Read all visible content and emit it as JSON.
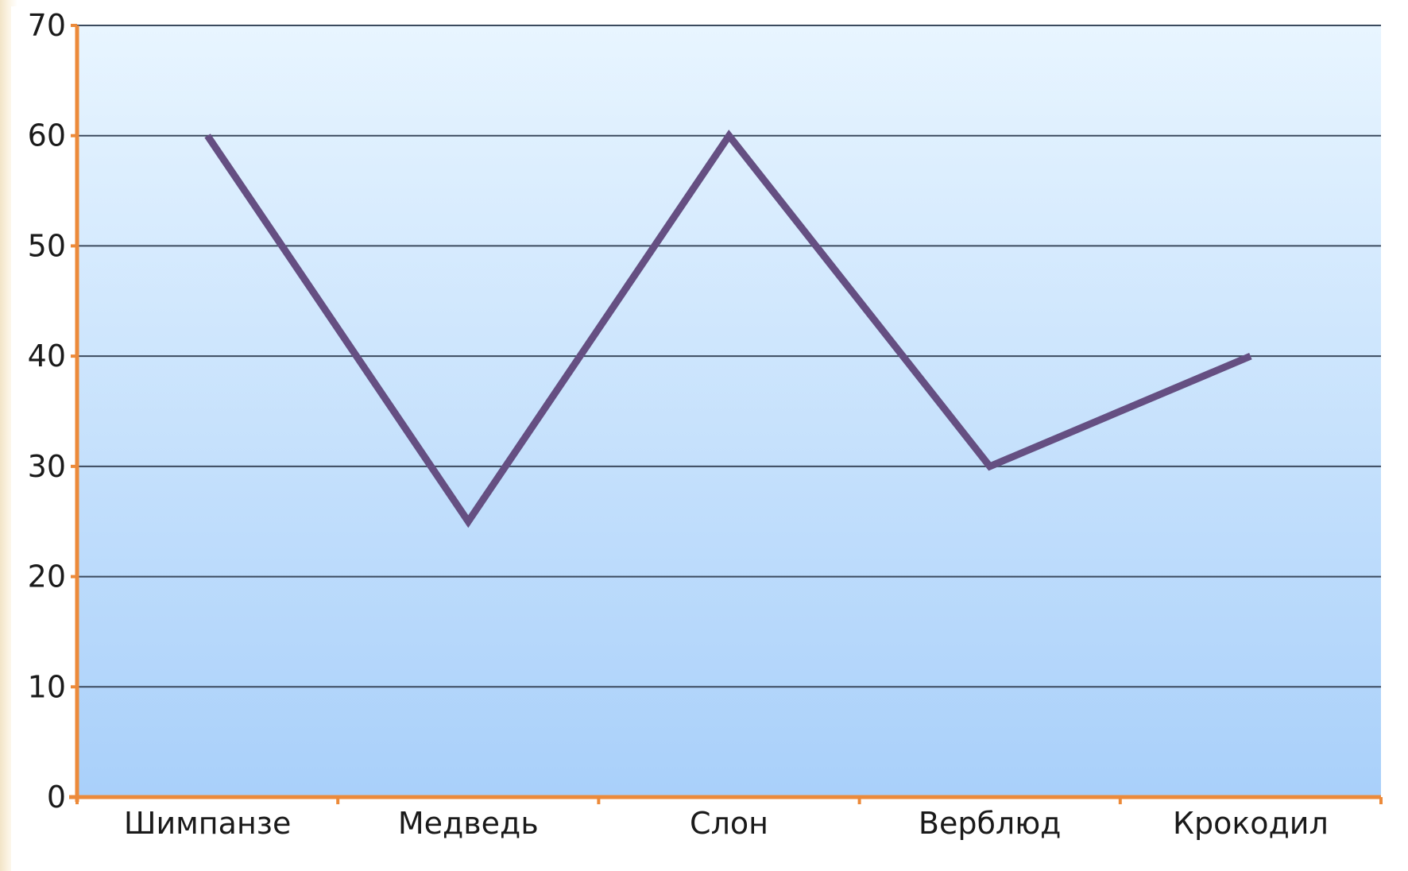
{
  "chart_data": {
    "type": "line",
    "title": "",
    "xlabel": "",
    "ylabel": "",
    "categories": [
      "Шимпанзе",
      "Медведь",
      "Слон",
      "Верблюд",
      "Крокодил"
    ],
    "series": [
      {
        "values": [
          60,
          25,
          60,
          30,
          40
        ],
        "color": "#654f82"
      }
    ],
    "ylim": [
      0,
      70
    ],
    "yticks": [
      0,
      10,
      20,
      30,
      40,
      50,
      60,
      70
    ],
    "grid": true,
    "legend": "none",
    "colors": {
      "axis": "#ec8a3a",
      "gridline": "#3b4a5e",
      "background_top": "#e8f5ff",
      "background_bottom": "#a9d0fa"
    }
  }
}
